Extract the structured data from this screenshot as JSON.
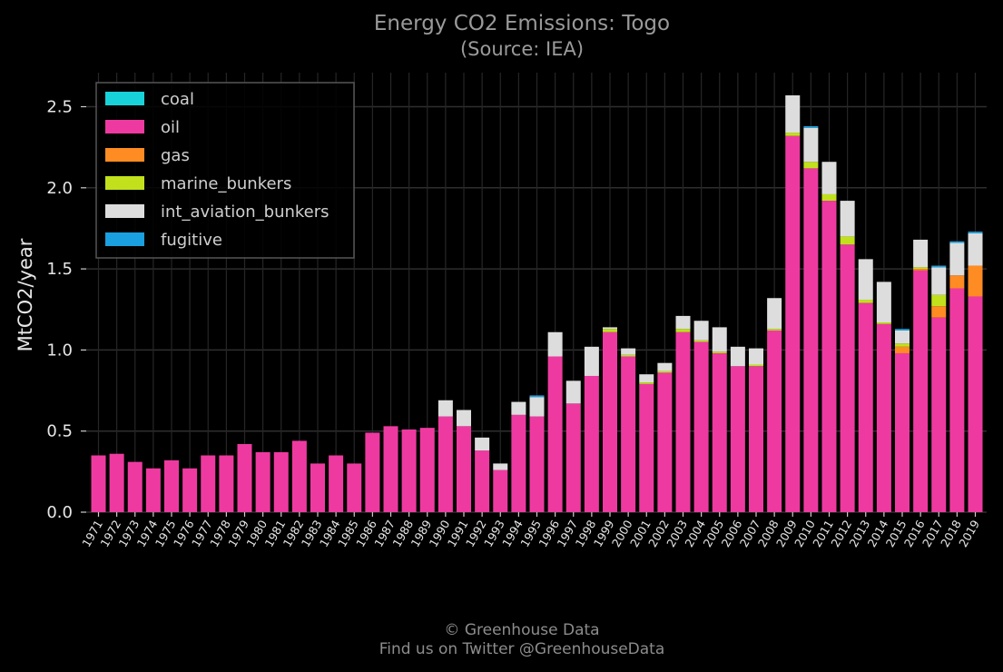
{
  "chart_data": {
    "type": "bar",
    "stacked": true,
    "title": "Energy CO2 Emissions: Togo",
    "subtitle": "(Source: IEA)",
    "xlabel": "",
    "ylabel": "MtCO2/year",
    "ylim": [
      0,
      2.7
    ],
    "yticks": [
      "0.0",
      "0.5",
      "1.0",
      "1.5",
      "2.0",
      "2.5"
    ],
    "grid": true,
    "legend_position": "top-left",
    "categories": [
      "1971",
      "1972",
      "1973",
      "1974",
      "1975",
      "1976",
      "1977",
      "1978",
      "1979",
      "1980",
      "1981",
      "1982",
      "1983",
      "1984",
      "1985",
      "1986",
      "1987",
      "1988",
      "1989",
      "1990",
      "1991",
      "1992",
      "1993",
      "1994",
      "1995",
      "1996",
      "1997",
      "1998",
      "1999",
      "2000",
      "2001",
      "2002",
      "2003",
      "2004",
      "2005",
      "2006",
      "2007",
      "2008",
      "2009",
      "2010",
      "2011",
      "2012",
      "2013",
      "2014",
      "2015",
      "2016",
      "2017",
      "2018",
      "2019"
    ],
    "series": [
      {
        "name": "coal",
        "color": "#17d3d9",
        "values": [
          0,
          0,
          0,
          0,
          0,
          0,
          0,
          0,
          0,
          0,
          0,
          0,
          0,
          0,
          0,
          0,
          0,
          0,
          0,
          0,
          0,
          0,
          0,
          0,
          0,
          0,
          0,
          0,
          0,
          0,
          0,
          0,
          0,
          0,
          0,
          0,
          0,
          0,
          0,
          0,
          0,
          0,
          0,
          0,
          0,
          0,
          0,
          0,
          0
        ]
      },
      {
        "name": "oil",
        "color": "#ee3aa0",
        "values": [
          0.35,
          0.36,
          0.31,
          0.27,
          0.32,
          0.27,
          0.35,
          0.35,
          0.42,
          0.37,
          0.37,
          0.44,
          0.3,
          0.35,
          0.3,
          0.49,
          0.53,
          0.51,
          0.52,
          0.59,
          0.53,
          0.38,
          0.26,
          0.6,
          0.59,
          0.96,
          0.67,
          0.84,
          1.11,
          0.96,
          0.79,
          0.86,
          1.11,
          1.05,
          0.98,
          0.9,
          0.9,
          1.12,
          2.32,
          2.12,
          1.92,
          1.65,
          1.29,
          1.16,
          0.98,
          1.49,
          1.2,
          1.38,
          1.33
        ]
      },
      {
        "name": "gas",
        "color": "#ff8b23",
        "values": [
          0,
          0,
          0,
          0,
          0,
          0,
          0,
          0,
          0,
          0,
          0,
          0,
          0,
          0,
          0,
          0,
          0,
          0,
          0,
          0,
          0,
          0,
          0,
          0,
          0,
          0,
          0,
          0,
          0,
          0,
          0,
          0,
          0,
          0,
          0,
          0,
          0,
          0,
          0,
          0,
          0,
          0,
          0,
          0,
          0.04,
          0.01,
          0.07,
          0.08,
          0.19
        ]
      },
      {
        "name": "marine_bunkers",
        "color": "#c2e01c",
        "values": [
          0,
          0,
          0,
          0,
          0,
          0,
          0,
          0,
          0,
          0,
          0,
          0,
          0,
          0,
          0,
          0,
          0,
          0,
          0,
          0,
          0,
          0,
          0,
          0,
          0,
          0,
          0,
          0,
          0.02,
          0.01,
          0.01,
          0.01,
          0.02,
          0.01,
          0.01,
          0,
          0.01,
          0.01,
          0.02,
          0.04,
          0.04,
          0.05,
          0.02,
          0.01,
          0.02,
          0.01,
          0.07,
          0,
          0
        ]
      },
      {
        "name": "int_aviation_bunkers",
        "color": "#dddddd",
        "values": [
          0,
          0,
          0,
          0,
          0,
          0,
          0,
          0,
          0,
          0,
          0,
          0,
          0,
          0,
          0,
          0,
          0,
          0,
          0,
          0.1,
          0.1,
          0.08,
          0.04,
          0.08,
          0.12,
          0.15,
          0.14,
          0.18,
          0.01,
          0.04,
          0.05,
          0.05,
          0.08,
          0.12,
          0.15,
          0.12,
          0.1,
          0.19,
          0.23,
          0.21,
          0.2,
          0.22,
          0.25,
          0.25,
          0.08,
          0.17,
          0.17,
          0.2,
          0.2
        ]
      },
      {
        "name": "fugitive",
        "color": "#1aa0e0",
        "values": [
          0,
          0,
          0,
          0,
          0,
          0,
          0,
          0,
          0,
          0,
          0,
          0,
          0,
          0,
          0,
          0,
          0,
          0,
          0,
          0,
          0,
          0,
          0,
          0,
          0.01,
          0,
          0,
          0,
          0,
          0,
          0,
          0,
          0,
          0,
          0,
          0,
          0,
          0,
          0,
          0.01,
          0,
          0,
          0,
          0,
          0.01,
          0,
          0.01,
          0.01,
          0.01
        ]
      }
    ]
  },
  "footer": {
    "line1": "© Greenhouse Data",
    "line2": "Find us on Twitter @GreenhouseData"
  }
}
